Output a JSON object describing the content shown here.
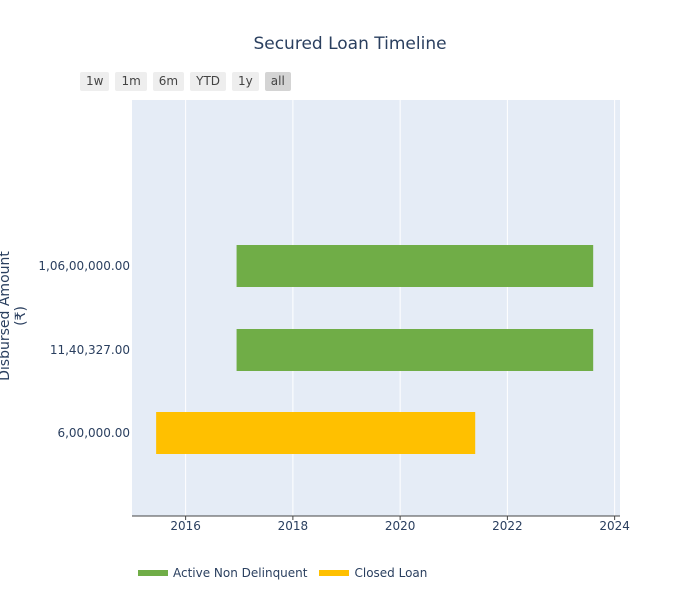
{
  "chart_data": {
    "type": "bar",
    "orientation": "horizontal",
    "title": "Secured Loan Timeline",
    "xlabel": "",
    "ylabel": "Disbursed Amount (₹)",
    "xlim": [
      2015.0,
      2024.1
    ],
    "x_ticks": [
      2016,
      2018,
      2020,
      2022,
      2024
    ],
    "categories": [
      "6,00,000.00",
      "11,40,327.00",
      "1,06,00,000.00"
    ],
    "bars": [
      {
        "category": "1,06,00,000.00",
        "start": 2016.95,
        "end": 2023.6,
        "series": "Active Non Delinquent"
      },
      {
        "category": "11,40,327.00",
        "start": 2016.95,
        "end": 2023.6,
        "series": "Active Non Delinquent"
      },
      {
        "category": "6,00,000.00",
        "start": 2015.45,
        "end": 2021.4,
        "series": "Closed Loan"
      }
    ],
    "series": [
      {
        "name": "Active Non Delinquent",
        "color": "#70ad47"
      },
      {
        "name": "Closed Loan",
        "color": "#ffc000"
      }
    ],
    "grid": true,
    "legend_position": "bottom-left",
    "plot_background": "#e5ecf6"
  },
  "range_selector": {
    "buttons": [
      "1w",
      "1m",
      "6m",
      "YTD",
      "1y",
      "all"
    ],
    "active": "all"
  }
}
